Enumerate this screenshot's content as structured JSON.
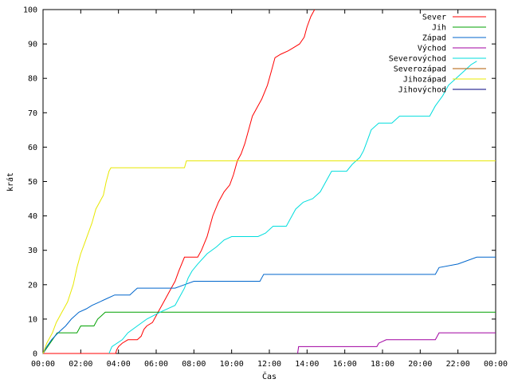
{
  "chart_data": {
    "type": "line",
    "title": "",
    "xlabel": "Čas",
    "ylabel": "krát",
    "xlim": [
      0,
      24
    ],
    "ylim": [
      0,
      100
    ],
    "x_ticks": [
      0,
      2,
      4,
      6,
      8,
      10,
      12,
      14,
      16,
      18,
      20,
      22,
      24
    ],
    "x_tick_labels": [
      "00:00",
      "02:00",
      "04:00",
      "06:00",
      "08:00",
      "10:00",
      "12:00",
      "14:00",
      "16:00",
      "18:00",
      "20:00",
      "22:00",
      "00:00"
    ],
    "y_ticks": [
      0,
      10,
      20,
      30,
      40,
      50,
      60,
      70,
      80,
      90,
      100
    ],
    "y_tick_labels": [
      "0",
      "10",
      "20",
      "30",
      "40",
      "50",
      "60",
      "70",
      "80",
      "90",
      "100"
    ],
    "grid": false,
    "legend_position": "top-right",
    "series": [
      {
        "name": "Sever",
        "color": "#ff0000",
        "points": [
          [
            0,
            0
          ],
          [
            3.85,
            0
          ],
          [
            3.9,
            1
          ],
          [
            4.0,
            2
          ],
          [
            4.2,
            3
          ],
          [
            4.5,
            4
          ],
          [
            5.0,
            4
          ],
          [
            5.2,
            5
          ],
          [
            5.35,
            7
          ],
          [
            5.5,
            8
          ],
          [
            5.8,
            9
          ],
          [
            6.0,
            11
          ],
          [
            6.2,
            13
          ],
          [
            6.4,
            15
          ],
          [
            6.6,
            17
          ],
          [
            6.8,
            19
          ],
          [
            7.0,
            21
          ],
          [
            7.2,
            24
          ],
          [
            7.5,
            28
          ],
          [
            8.2,
            28
          ],
          [
            8.4,
            30
          ],
          [
            8.7,
            34
          ],
          [
            9.0,
            40
          ],
          [
            9.3,
            44
          ],
          [
            9.6,
            47
          ],
          [
            9.9,
            49
          ],
          [
            10.1,
            52
          ],
          [
            10.3,
            56
          ],
          [
            10.5,
            58
          ],
          [
            10.7,
            61
          ],
          [
            10.9,
            65
          ],
          [
            11.1,
            69
          ],
          [
            11.3,
            71
          ],
          [
            11.6,
            74
          ],
          [
            11.9,
            78
          ],
          [
            12.1,
            82
          ],
          [
            12.3,
            86
          ],
          [
            12.6,
            87
          ],
          [
            13.0,
            88
          ],
          [
            13.3,
            89
          ],
          [
            13.6,
            90
          ],
          [
            13.85,
            92
          ],
          [
            14.0,
            95
          ],
          [
            14.2,
            98
          ],
          [
            14.4,
            100
          ]
        ]
      },
      {
        "name": "Jih",
        "color": "#00a000",
        "points": [
          [
            0,
            0
          ],
          [
            0.25,
            2
          ],
          [
            0.5,
            4
          ],
          [
            0.75,
            6
          ],
          [
            1.8,
            6
          ],
          [
            2.0,
            8
          ],
          [
            2.7,
            8
          ],
          [
            2.9,
            10
          ],
          [
            3.1,
            11
          ],
          [
            3.3,
            12
          ],
          [
            24,
            12
          ]
        ]
      },
      {
        "name": "Západ",
        "color": "#0066cc",
        "points": [
          [
            0,
            0
          ],
          [
            0.2,
            2
          ],
          [
            0.45,
            4
          ],
          [
            0.8,
            6
          ],
          [
            1.2,
            8
          ],
          [
            1.5,
            10
          ],
          [
            1.9,
            12
          ],
          [
            2.3,
            13
          ],
          [
            2.6,
            14
          ],
          [
            3.0,
            15
          ],
          [
            3.4,
            16
          ],
          [
            3.8,
            17
          ],
          [
            4.6,
            17
          ],
          [
            4.8,
            18
          ],
          [
            5.0,
            19
          ],
          [
            7.0,
            19
          ],
          [
            7.5,
            20
          ],
          [
            8.0,
            21
          ],
          [
            11.5,
            21
          ],
          [
            11.6,
            22
          ],
          [
            11.7,
            23
          ],
          [
            16,
            23
          ],
          [
            20.8,
            23
          ],
          [
            20.9,
            24
          ],
          [
            21.0,
            25
          ],
          [
            22.0,
            26
          ],
          [
            23.0,
            28
          ],
          [
            24,
            28
          ]
        ]
      },
      {
        "name": "Východ",
        "color": "#a000a0",
        "points": [
          [
            13.5,
            0
          ],
          [
            13.55,
            2
          ],
          [
            17.7,
            2
          ],
          [
            17.8,
            3
          ],
          [
            18.2,
            4
          ],
          [
            20.8,
            4
          ],
          [
            21.0,
            6
          ],
          [
            24,
            6
          ]
        ]
      },
      {
        "name": "Severovýchod",
        "color": "#00dddd",
        "points": [
          [
            3.5,
            0
          ],
          [
            3.65,
            2
          ],
          [
            4.2,
            4
          ],
          [
            4.5,
            6
          ],
          [
            5.0,
            8
          ],
          [
            5.5,
            10
          ],
          [
            6.2,
            12
          ],
          [
            7.0,
            14
          ],
          [
            7.2,
            16
          ],
          [
            7.5,
            19
          ],
          [
            7.7,
            22
          ],
          [
            7.9,
            24
          ],
          [
            8.2,
            26
          ],
          [
            8.7,
            29
          ],
          [
            9.2,
            31
          ],
          [
            9.6,
            33
          ],
          [
            10.0,
            34
          ],
          [
            11.4,
            34
          ],
          [
            11.8,
            35
          ],
          [
            12.2,
            37
          ],
          [
            12.9,
            37
          ],
          [
            13.1,
            39
          ],
          [
            13.4,
            42
          ],
          [
            13.8,
            44
          ],
          [
            14.3,
            45
          ],
          [
            14.7,
            47
          ],
          [
            15.0,
            50
          ],
          [
            15.3,
            53
          ],
          [
            16.1,
            53
          ],
          [
            16.4,
            55
          ],
          [
            16.8,
            57
          ],
          [
            17.0,
            59
          ],
          [
            17.2,
            62
          ],
          [
            17.4,
            65
          ],
          [
            17.8,
            67
          ],
          [
            18.5,
            67
          ],
          [
            18.9,
            69
          ],
          [
            20.5,
            69
          ],
          [
            20.8,
            72
          ],
          [
            21.2,
            75
          ],
          [
            21.5,
            78
          ],
          [
            21.9,
            80
          ],
          [
            22.3,
            82
          ],
          [
            22.7,
            84
          ],
          [
            23.0,
            85
          ]
        ]
      },
      {
        "name": "Severozápad",
        "color": "#b05a00",
        "points": []
      },
      {
        "name": "Jihozápad",
        "color": "#e8e800",
        "points": [
          [
            0,
            0
          ],
          [
            0.2,
            3
          ],
          [
            0.5,
            6
          ],
          [
            0.7,
            9
          ],
          [
            1.0,
            12
          ],
          [
            1.3,
            15
          ],
          [
            1.6,
            20
          ],
          [
            1.8,
            25
          ],
          [
            2.0,
            29
          ],
          [
            2.2,
            32
          ],
          [
            2.4,
            35
          ],
          [
            2.6,
            38
          ],
          [
            2.8,
            42
          ],
          [
            3.0,
            44
          ],
          [
            3.2,
            46
          ],
          [
            3.35,
            50
          ],
          [
            3.5,
            53
          ],
          [
            3.6,
            54
          ],
          [
            7.5,
            54
          ],
          [
            7.6,
            56
          ],
          [
            24,
            56
          ]
        ]
      },
      {
        "name": "Jihovýchod",
        "color": "#000080",
        "points": []
      }
    ]
  }
}
